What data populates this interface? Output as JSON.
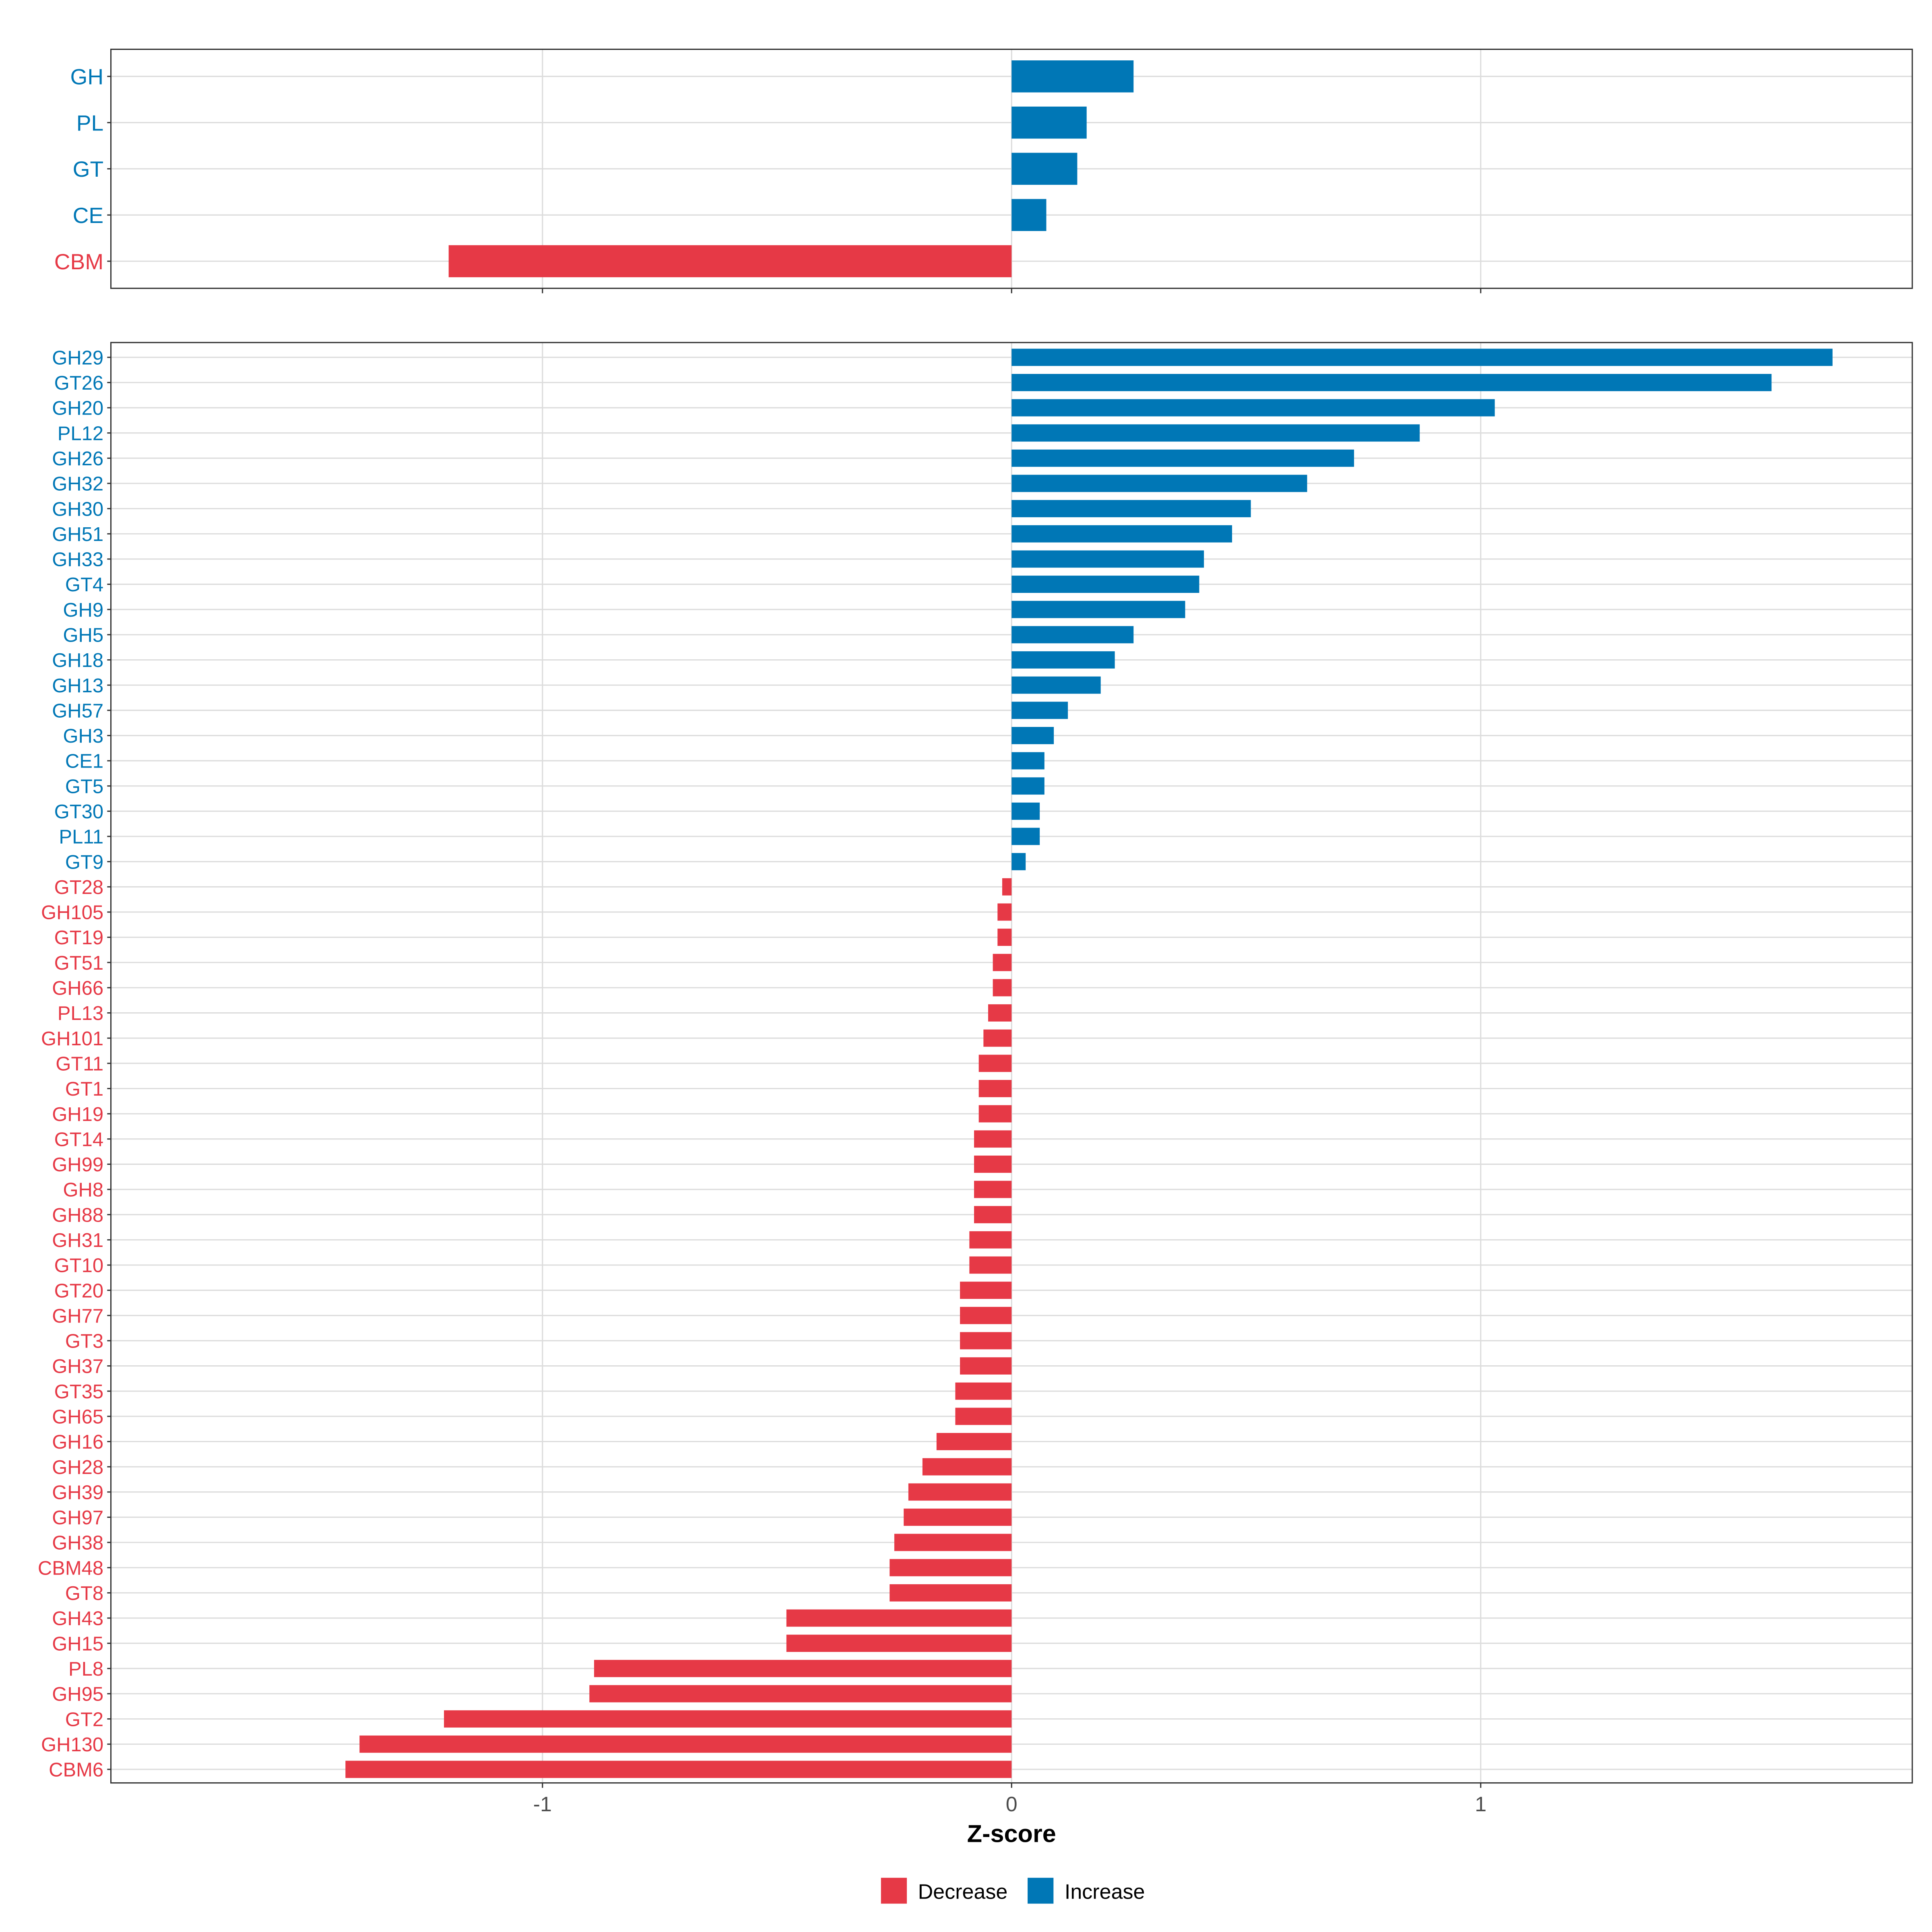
{
  "chart_data": {
    "type": "bar",
    "orientation": "horizontal",
    "xlabel": "Z-score",
    "xlim": [
      -1.92,
      1.92
    ],
    "xticks": [
      -1,
      0,
      1
    ],
    "xtick_labels": [
      "-1",
      "0",
      "1"
    ],
    "grid": true,
    "legend": {
      "placement": "bottom",
      "entries": [
        {
          "label": "Decrease",
          "color": "#E63946"
        },
        {
          "label": "Increase",
          "color": "#0077B6"
        }
      ]
    },
    "colors": {
      "Decrease": "#E63946",
      "Increase": "#0077B6"
    },
    "panels": [
      {
        "name": "family",
        "categories": [
          "GH",
          "PL",
          "GT",
          "CE",
          "CBM"
        ],
        "values": [
          0.26,
          0.16,
          0.14,
          0.074,
          -1.2
        ]
      },
      {
        "name": "subfamily",
        "categories": [
          "GH29",
          "GT26",
          "GH20",
          "PL12",
          "GH26",
          "GH32",
          "GH30",
          "GH51",
          "GH33",
          "GT4",
          "GH9",
          "GH5",
          "GH18",
          "GH13",
          "GH57",
          "GH3",
          "CE1",
          "GT5",
          "GT30",
          "PL11",
          "GT9",
          "GT28",
          "GH105",
          "GT19",
          "GT51",
          "GH66",
          "PL13",
          "GH101",
          "GT11",
          "GT1",
          "GH19",
          "GT14",
          "GH99",
          "GH8",
          "GH88",
          "GH31",
          "GT10",
          "GT20",
          "GH77",
          "GT3",
          "GH37",
          "GT35",
          "GH65",
          "GH16",
          "GH28",
          "GH39",
          "GH97",
          "GH38",
          "CBM48",
          "GT8",
          "GH43",
          "GH15",
          "PL8",
          "GH95",
          "GT2",
          "GH130",
          "CBM6"
        ],
        "values": [
          1.75,
          1.62,
          1.03,
          0.87,
          0.73,
          0.63,
          0.51,
          0.47,
          0.41,
          0.4,
          0.37,
          0.26,
          0.22,
          0.19,
          0.12,
          0.09,
          0.07,
          0.07,
          0.06,
          0.06,
          0.03,
          -0.02,
          -0.03,
          -0.03,
          -0.04,
          -0.04,
          -0.05,
          -0.06,
          -0.07,
          -0.07,
          -0.07,
          -0.08,
          -0.08,
          -0.08,
          -0.08,
          -0.09,
          -0.09,
          -0.11,
          -0.11,
          -0.11,
          -0.11,
          -0.12,
          -0.12,
          -0.16,
          -0.19,
          -0.22,
          -0.23,
          -0.25,
          -0.26,
          -0.26,
          -0.48,
          -0.48,
          -0.89,
          -0.9,
          -1.21,
          -1.39,
          -1.42
        ]
      }
    ]
  }
}
